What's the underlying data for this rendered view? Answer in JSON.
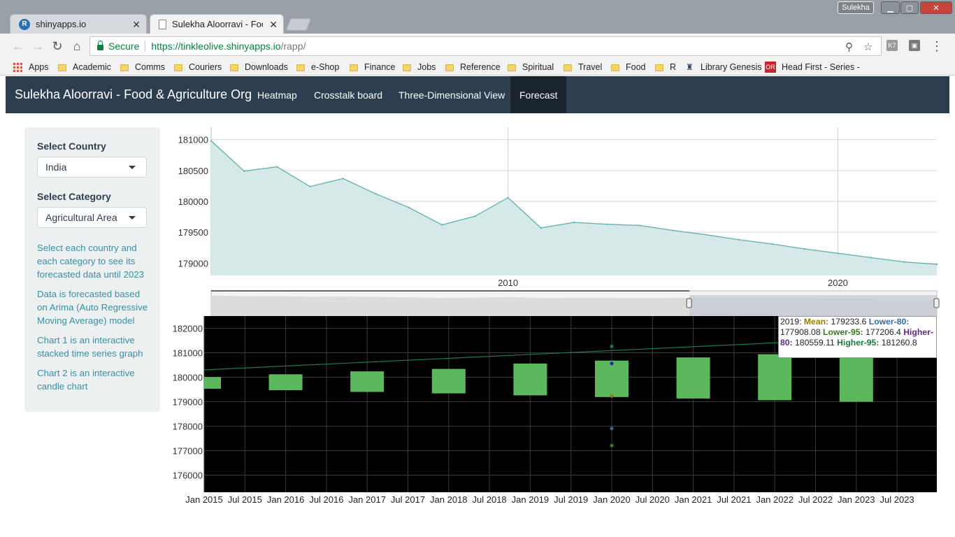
{
  "browser": {
    "tabs": [
      {
        "title": "shinyapps.io",
        "icon": "r-logo-icon"
      },
      {
        "title": "Sulekha Aloorravi - Food",
        "icon": "page-icon"
      }
    ],
    "user": "Sulekha",
    "secure_label": "Secure",
    "url_host": "https://tinkleolive.shinyapps.io",
    "url_path": "/rapp/",
    "bookmarks": [
      "Apps",
      "Academic",
      "Comms",
      "Couriers",
      "Downloads",
      "e-Shop",
      "Finance",
      "Jobs",
      "Reference",
      "Spiritual",
      "Travel",
      "Food",
      "R",
      "Library Genesis",
      "Head First - Series - C"
    ]
  },
  "app": {
    "brand": "Sulekha Aloorravi - Food & Agriculture Org",
    "nav": [
      "Heatmap",
      "Crosstalk board",
      "Three-Dimensional View",
      "Forecast"
    ],
    "active_nav": "Forecast"
  },
  "sidebar": {
    "country_label": "Select Country",
    "country_value": "India",
    "category_label": "Select Category",
    "category_value": "Agricultural Area",
    "notes": [
      "Select each country and each category to see its forecasted data until 2023",
      "Data is forecasted based on Arima (Auto Regressive Moving Average) model",
      "Chart 1 is an interactive stacked time series graph",
      "Chart 2 is an interactive candle chart"
    ]
  },
  "tooltip": {
    "year": "2019",
    "mean_label": "Mean:",
    "mean": "179233.6",
    "lower80_label": "Lower-80:",
    "lower80": "177908.08",
    "lower95_label": "Lower-95:",
    "lower95": "177206.4",
    "higher80_label": "Higher-80:",
    "higher80": "180559.11",
    "higher95_label": "Higher-95:",
    "higher95": "181260.8",
    "colors": {
      "mean": "#9a7d00",
      "lower80": "#2e6fa3",
      "lower95": "#3a7a1e",
      "higher80": "#5e2a86",
      "higher95": "#1b7a3a"
    }
  },
  "chart_data": [
    {
      "type": "area",
      "x": [
        2001,
        2002,
        2003,
        2004,
        2005,
        2006,
        2007,
        2008,
        2009,
        2010,
        2011,
        2012,
        2013,
        2014,
        2015,
        2016,
        2017,
        2018,
        2019,
        2020,
        2021,
        2022,
        2023
      ],
      "values": [
        180980,
        180490,
        180560,
        180240,
        180370,
        180120,
        179900,
        179620,
        179760,
        180060,
        179570,
        179660,
        179630,
        179610,
        179530,
        179460,
        179380,
        179310,
        179230,
        179160,
        179090,
        179020,
        178980
      ],
      "ylim": [
        178800,
        181200
      ],
      "yticks": [
        181000,
        180500,
        180000,
        179500,
        179000
      ],
      "xticks": [
        "2010",
        "2020"
      ],
      "range_selector": {
        "from": 2001,
        "to": 2015.5
      },
      "colors": {
        "line": "#69b3b5",
        "fill": "#d4e9e8"
      }
    },
    {
      "type": "candlestick",
      "x_ticks": [
        "Jan 2015",
        "Jul 2015",
        "Jan 2016",
        "Jul 2016",
        "Jan 2017",
        "Jul 2017",
        "Jan 2018",
        "Jul 2018",
        "Jan 2019",
        "Jul 2019",
        "Jan 2020",
        "Jul 2020",
        "Jan 2021",
        "Jul 2021",
        "Jan 2022",
        "Jul 2022",
        "Jan 2023",
        "Jul 2023"
      ],
      "yticks": [
        182000,
        181000,
        180000,
        179000,
        178000,
        177000,
        176000
      ],
      "ylim": [
        175300,
        182500
      ],
      "candles": [
        {
          "year": "2015",
          "low": 179530,
          "high": 180010
        },
        {
          "year": "2016",
          "low": 179470,
          "high": 180120
        },
        {
          "year": "2017",
          "low": 179400,
          "high": 180240
        },
        {
          "year": "2018",
          "low": 179340,
          "high": 180340
        },
        {
          "year": "2019",
          "low": 179260,
          "high": 180560
        },
        {
          "year": "2020",
          "low": 179190,
          "high": 180680
        },
        {
          "year": "2021",
          "low": 179130,
          "high": 180810
        },
        {
          "year": "2022",
          "low": 179060,
          "high": 180940
        },
        {
          "year": "2023",
          "low": 179000,
          "high": 181060
        }
      ],
      "trend": {
        "from": 180300,
        "to": 181720
      },
      "hover_points": [
        181260.8,
        180559.11,
        179233.6,
        177908.08,
        177206.4
      ],
      "colors": {
        "background": "#000000",
        "candle": "#5cb85c",
        "trend": "#1e7a5a"
      }
    }
  ]
}
